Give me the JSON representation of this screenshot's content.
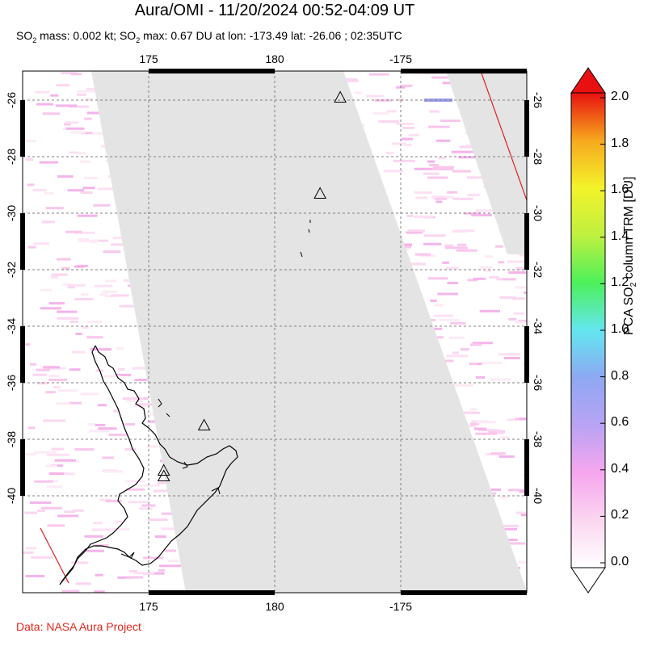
{
  "title": "Aura/OMI - 11/20/2024 00:52-04:09 UT",
  "subtitle": {
    "prefix": "SO",
    "sub1": "2",
    "mid": " mass: 0.002 kt; SO",
    "sub2": "2",
    "suffix": " max: 0.67 DU at lon: -173.49 lat: -26.06 ; 02:35UTC"
  },
  "map": {
    "lon_ticks_top": [
      "175",
      "180",
      "-175"
    ],
    "lon_ticks_bottom": [
      "175",
      "180",
      "-175"
    ],
    "lat_ticks": [
      "-26",
      "-28",
      "-30",
      "-32",
      "-34",
      "-36",
      "-38",
      "-40"
    ],
    "volcano_markers": [
      {
        "lon": -177.4,
        "lat": -25.9
      },
      {
        "lon": -178.2,
        "lat": -29.3
      },
      {
        "lon": 177.2,
        "lat": -37.5
      },
      {
        "lon": 175.6,
        "lat": -39.1
      },
      {
        "lon": 175.6,
        "lat": -39.3
      }
    ],
    "colors": {
      "no_data": "#e4e4e4",
      "coast": "#000000",
      "track": "#e02020",
      "grid": "#808080"
    }
  },
  "colorbar": {
    "ticks": [
      "2.0",
      "1.8",
      "1.6",
      "1.4",
      "1.2",
      "1.0",
      "0.8",
      "0.6",
      "0.4",
      "0.2",
      "0.0"
    ],
    "label_pre": "PCA SO",
    "label_sub": "2",
    "label_post": " column TRM [DU]",
    "colors": [
      "#ffffff",
      "#fbd6f0",
      "#f6a6ee",
      "#b9a3f4",
      "#8ea8f2",
      "#63e6f0",
      "#4df05a",
      "#bff040",
      "#f3f32a",
      "#f7a81e",
      "#f24a1c",
      "#e81010"
    ]
  },
  "credit": "Data: NASA Aura Project"
}
